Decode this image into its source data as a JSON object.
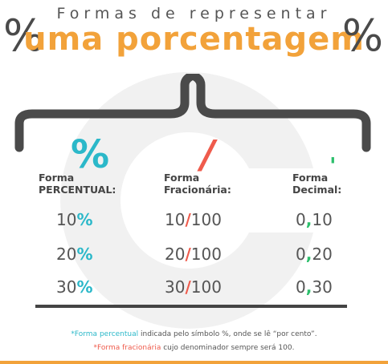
{
  "title": {
    "top": "Formas de representar",
    "main": "uma porcentagem",
    "percent_symbol": "%"
  },
  "columns": [
    {
      "symbol": "%",
      "label_line1": "Forma",
      "label_line2": "PERCENTUAL:"
    },
    {
      "symbol": "/",
      "label_line1": "Forma",
      "label_line2": "Fracionária:"
    },
    {
      "symbol": "'",
      "label_line1": "Forma",
      "label_line2": "Decimal:"
    }
  ],
  "rows": [
    {
      "percent_num": "10",
      "percent_sign": "%",
      "frac_num": "10",
      "frac_sep": "/",
      "frac_den": "100",
      "dec_int": "0",
      "dec_sep": ",",
      "dec_frac": "10"
    },
    {
      "percent_num": "20",
      "percent_sign": "%",
      "frac_num": "20",
      "frac_sep": "/",
      "frac_den": "100",
      "dec_int": "0",
      "dec_sep": ",",
      "dec_frac": "20"
    },
    {
      "percent_num": "30",
      "percent_sign": "%",
      "frac_num": "30",
      "frac_sep": "/",
      "frac_den": "100",
      "dec_int": "0",
      "dec_sep": ",",
      "dec_frac": "30"
    }
  ],
  "notes": {
    "line1_highlight": "*Forma percentual",
    "line1_rest": " indicada pelo símbolo %, onde se lê “por cento”.",
    "line2_highlight": "*Forma fracionária",
    "line2_rest": " cujo denominador sempre será 100."
  },
  "colors": {
    "title_accent": "#f2a23a",
    "percent_accent": "#2bb8c9",
    "fraction_accent": "#ef5b4c",
    "decimal_accent": "#2cbf6c",
    "dark": "#444444"
  }
}
